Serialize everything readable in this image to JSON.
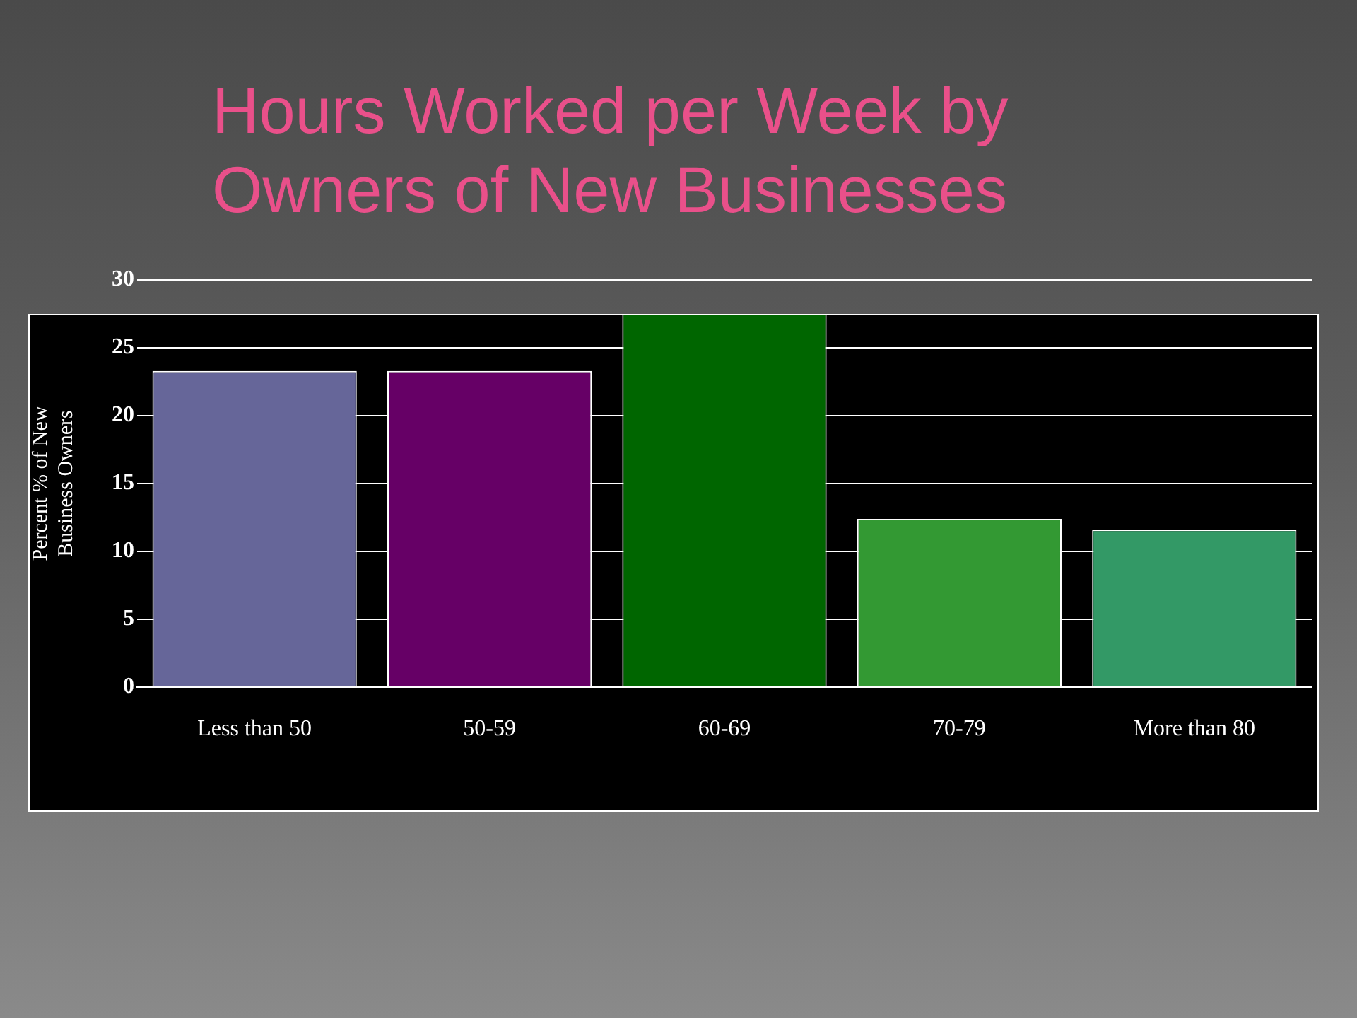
{
  "chart_data": {
    "type": "bar",
    "title": "Hours Worked per Week by\nOwners of New Businesses",
    "ylabel": "Percent % of New\nBusiness Owners",
    "categories": [
      "Less than 50",
      "50-59",
      "60-69",
      "70-79",
      "More than 80"
    ],
    "values": [
      23.3,
      23.3,
      27.5,
      12.4,
      11.6
    ],
    "colors": [
      "#666699",
      "#660066",
      "#006600",
      "#339933",
      "#339966"
    ],
    "ylim": [
      0,
      30
    ],
    "yticks": [
      0,
      5,
      10,
      15,
      20,
      25,
      30
    ],
    "grid": "y",
    "legend": false
  }
}
